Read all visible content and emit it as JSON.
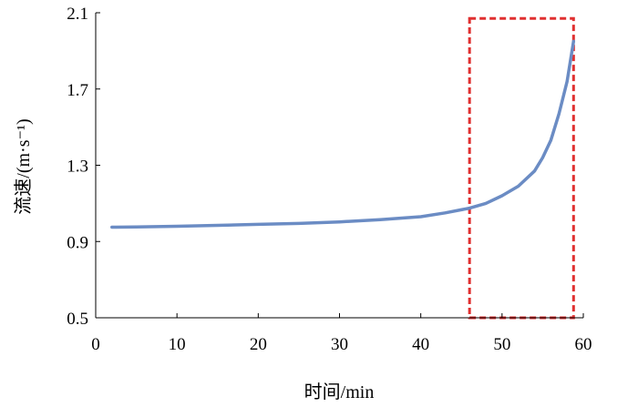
{
  "chart_data": {
    "type": "line",
    "xlabel": "时间/min",
    "ylabel": "流速/(m·s⁻¹)",
    "xlim": [
      0,
      60
    ],
    "ylim": [
      0.5,
      2.1
    ],
    "x_ticks": [
      "0",
      "10",
      "20",
      "30",
      "40",
      "50",
      "60"
    ],
    "y_ticks": [
      "0.5",
      "0.9",
      "1.3",
      "1.7",
      "2.1"
    ],
    "grid": false,
    "legend": "none",
    "series": [
      {
        "color": "#6b8cc4",
        "x": [
          2,
          5,
          10,
          15,
          20,
          25,
          30,
          35,
          40,
          43,
          46,
          48,
          50,
          52,
          54,
          55,
          56,
          57,
          58,
          58.8
        ],
        "y": [
          0.975,
          0.976,
          0.98,
          0.985,
          0.99,
          0.995,
          1.003,
          1.015,
          1.03,
          1.05,
          1.075,
          1.1,
          1.14,
          1.19,
          1.27,
          1.34,
          1.43,
          1.57,
          1.74,
          1.95
        ]
      }
    ],
    "annotations": [
      {
        "type": "dashed-rectangle",
        "color": "#e03030",
        "x": [
          46,
          58.8
        ],
        "y": [
          0.5,
          2.07
        ]
      }
    ]
  }
}
